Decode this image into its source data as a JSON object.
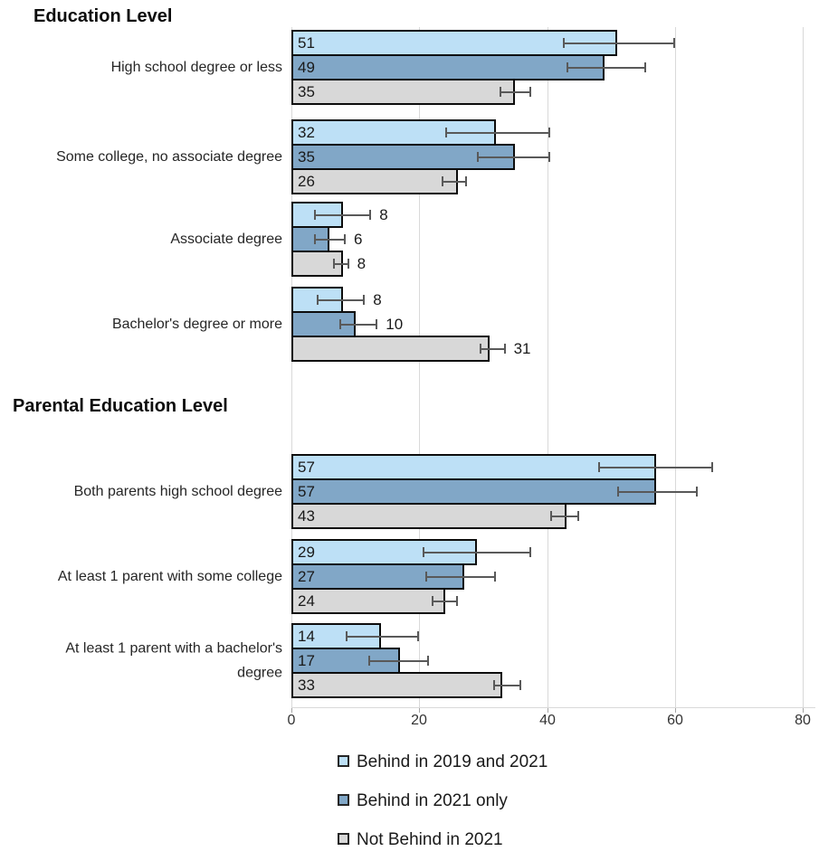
{
  "chart_data": {
    "type": "bar",
    "orientation": "horizontal",
    "x_axis": {
      "ticks": [
        0,
        20,
        40,
        60,
        80
      ],
      "range": [
        0,
        82
      ],
      "grid": true
    },
    "colors": {
      "behind_2019_and_2021": "#bde0f6",
      "behind_2021_only": "#81a7c7",
      "not_behind_2021": "#d8d8d8",
      "bar_border": "#0d0d0d",
      "error_bar": "#595959",
      "gridline": "#d9d9d9"
    },
    "legend": {
      "position": "bottom",
      "items": [
        {
          "label": "Behind in 2019 and 2021",
          "color": "#bde0f6"
        },
        {
          "label": "Behind in 2021 only",
          "color": "#81a7c7"
        },
        {
          "label": "Not Behind in 2021",
          "color": "#d8d8d8"
        }
      ]
    },
    "sections": [
      {
        "label": "Education Level",
        "groups": [
          {
            "category": "High school degree or less",
            "bars": [
              {
                "series": "Behind in 2019 and 2021",
                "value": 51,
                "error_low": 42.5,
                "error_high": 60,
                "label_position": "inside"
              },
              {
                "series": "Behind in 2021 only",
                "value": 49,
                "error_low": 43,
                "error_high": 55.5,
                "label_position": "inside"
              },
              {
                "series": "Not Behind in 2021",
                "value": 35,
                "error_low": 32.5,
                "error_high": 37.5,
                "label_position": "inside"
              }
            ]
          },
          {
            "category": "Some college, no associate degree",
            "bars": [
              {
                "series": "Behind in 2019 and 2021",
                "value": 32,
                "error_low": 24,
                "error_high": 40.5,
                "label_position": "inside"
              },
              {
                "series": "Behind in 2021 only",
                "value": 35,
                "error_low": 29,
                "error_high": 40.5,
                "label_position": "inside"
              },
              {
                "series": "Not Behind in 2021",
                "value": 26,
                "error_low": 23.5,
                "error_high": 27.5,
                "label_position": "inside"
              }
            ]
          },
          {
            "category": "Associate degree",
            "bars": [
              {
                "series": "Behind in 2019 and 2021",
                "value": 8,
                "error_low": 3.5,
                "error_high": 12.5,
                "label_position": "outside"
              },
              {
                "series": "Behind in 2021 only",
                "value": 6,
                "error_low": 3.5,
                "error_high": 8.5,
                "label_position": "outside"
              },
              {
                "series": "Not Behind in 2021",
                "value": 8,
                "error_low": 6.5,
                "error_high": 9,
                "label_position": "outside"
              }
            ]
          },
          {
            "category": "Bachelor's degree or more",
            "bars": [
              {
                "series": "Behind in 2019 and 2021",
                "value": 8,
                "error_low": 4,
                "error_high": 11.5,
                "label_position": "outside"
              },
              {
                "series": "Behind in 2021 only",
                "value": 10,
                "error_low": 7.5,
                "error_high": 13.5,
                "label_position": "outside"
              },
              {
                "series": "Not Behind in 2021",
                "value": 31,
                "error_low": 29.5,
                "error_high": 33.5,
                "label_position": "outside"
              }
            ]
          }
        ]
      },
      {
        "label": "Parental Education Level",
        "groups": [
          {
            "category": "Both parents high school degree",
            "bars": [
              {
                "series": "Behind in 2019 and 2021",
                "value": 57,
                "error_low": 48,
                "error_high": 66,
                "label_position": "inside"
              },
              {
                "series": "Behind in 2021 only",
                "value": 57,
                "error_low": 51,
                "error_high": 63.5,
                "label_position": "inside"
              },
              {
                "series": "Not Behind in 2021",
                "value": 43,
                "error_low": 40.5,
                "error_high": 45,
                "label_position": "inside"
              }
            ]
          },
          {
            "category": "At  least 1 parent with some college",
            "bars": [
              {
                "series": "Behind in 2019 and 2021",
                "value": 29,
                "error_low": 20.5,
                "error_high": 37.5,
                "label_position": "inside"
              },
              {
                "series": "Behind in 2021 only",
                "value": 27,
                "error_low": 21,
                "error_high": 32,
                "label_position": "inside"
              },
              {
                "series": "Not Behind in 2021",
                "value": 24,
                "error_low": 22,
                "error_high": 26,
                "label_position": "inside"
              }
            ]
          },
          {
            "category": "At least 1 parent with a bachelor's degree",
            "bars": [
              {
                "series": "Behind in 2019 and 2021",
                "value": 14,
                "error_low": 8.5,
                "error_high": 20,
                "label_position": "inside"
              },
              {
                "series": "Behind in 2021 only",
                "value": 17,
                "error_low": 12,
                "error_high": 21.5,
                "label_position": "inside"
              },
              {
                "series": "Not Behind in 2021",
                "value": 33,
                "error_low": 31.5,
                "error_high": 36,
                "label_position": "inside"
              }
            ]
          }
        ]
      }
    ]
  }
}
